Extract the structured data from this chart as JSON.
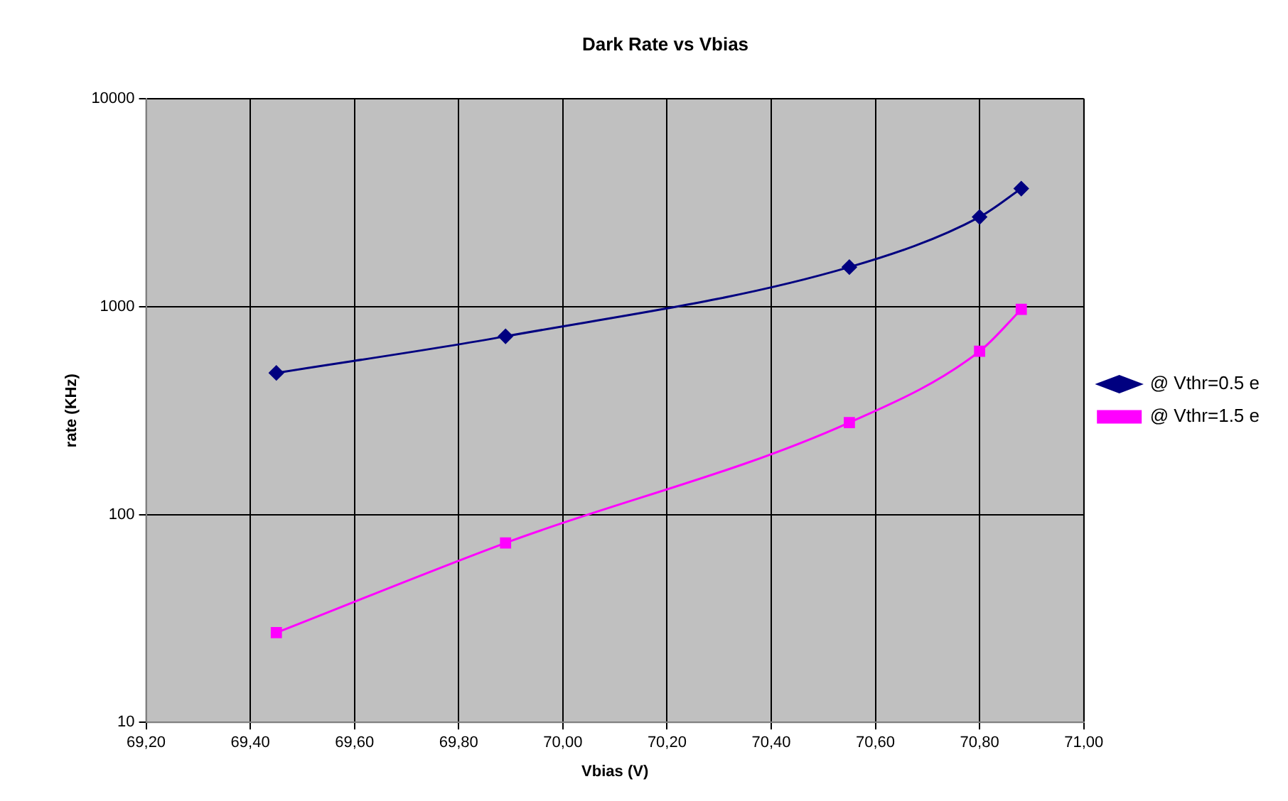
{
  "chart_data": {
    "type": "line",
    "title": "Dark Rate vs Vbias",
    "xlabel": "Vbias (V)",
    "ylabel": "rate (KHz)",
    "x": [
      69.45,
      69.89,
      70.55,
      70.8,
      70.88
    ],
    "series": [
      {
        "name": "@ Vthr=0.5 e",
        "color": "#000080",
        "marker": "diamond",
        "values": [
          480,
          720,
          1550,
          2700,
          3700
        ]
      },
      {
        "name": "@ Vthr=1.5 e",
        "color": "#ff00ff",
        "marker": "square",
        "values": [
          27,
          73,
          277,
          610,
          970
        ]
      }
    ],
    "xlim": [
      69.2,
      71.0
    ],
    "xticks": [
      {
        "value": 69.2,
        "label": "69,20"
      },
      {
        "value": 69.4,
        "label": "69,40"
      },
      {
        "value": 69.6,
        "label": "69,60"
      },
      {
        "value": 69.8,
        "label": "69,80"
      },
      {
        "value": 70.0,
        "label": "70,00"
      },
      {
        "value": 70.2,
        "label": "70,20"
      },
      {
        "value": 70.4,
        "label": "70,40"
      },
      {
        "value": 70.6,
        "label": "70,60"
      },
      {
        "value": 70.8,
        "label": "70,80"
      },
      {
        "value": 71.0,
        "label": "71,00"
      }
    ],
    "ylim": [
      10,
      10000
    ],
    "yticks": [
      10,
      100,
      1000,
      10000
    ],
    "log": true,
    "grid": true,
    "legend": "right",
    "line_style": "solid"
  }
}
